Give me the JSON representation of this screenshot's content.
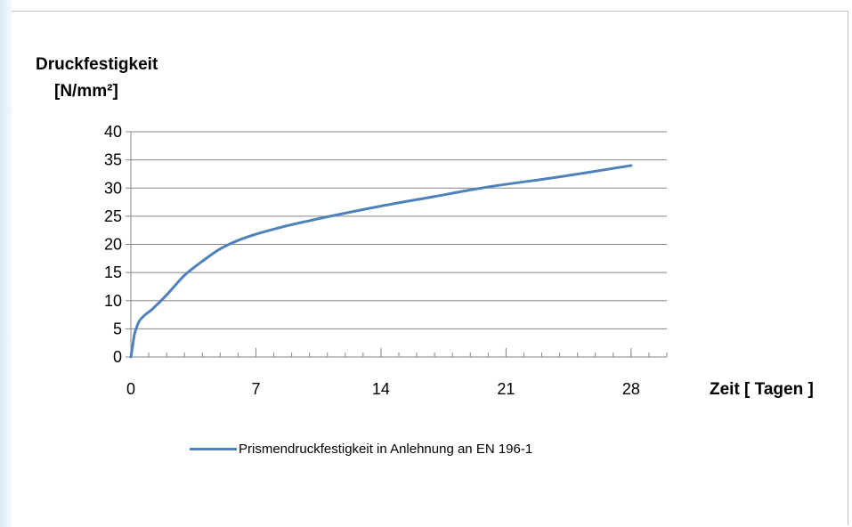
{
  "chart_data": {
    "type": "line",
    "ylabel": [
      "Druckfestigkeit",
      "[N/mm²]"
    ],
    "xlabel": "Zeit [ Tagen ]",
    "xlim": [
      0,
      30
    ],
    "ylim": [
      0,
      40
    ],
    "x_ticks": [
      0,
      7,
      14,
      21,
      28
    ],
    "y_ticks": [
      0,
      5,
      10,
      15,
      20,
      25,
      30,
      35,
      40
    ],
    "grid": "horizontal",
    "legend_position": "bottom",
    "series": [
      {
        "name": "Prismendruckfestigkeit in Anlehnung an EN 196-1",
        "color": "#4f81bd",
        "x": [
          0,
          0.1,
          0.2,
          0.35,
          0.5,
          0.8,
          1.2,
          2,
          3,
          4,
          5,
          6,
          7,
          8,
          9,
          10,
          11,
          14,
          17,
          20,
          24,
          28
        ],
        "y": [
          0,
          2,
          4,
          5.5,
          6.5,
          7.5,
          8.5,
          11,
          14.5,
          17,
          19.2,
          20.7,
          21.8,
          22.7,
          23.5,
          24.2,
          24.9,
          26.8,
          28.5,
          30.2,
          32,
          34
        ]
      }
    ]
  }
}
